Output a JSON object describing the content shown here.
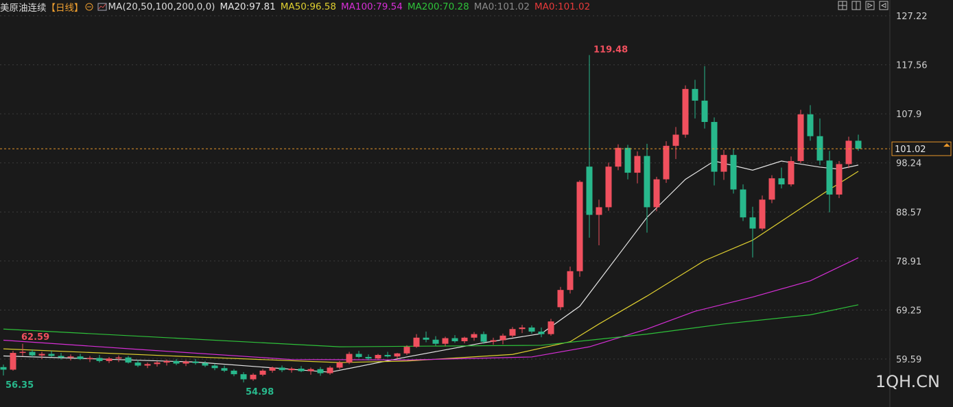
{
  "header": {
    "title": "美原油连续",
    "period": "【日线】",
    "indicator": "MA(20,50,100,200,0,0)"
  },
  "chart_data": {
    "type": "candlestick",
    "open": [
      58,
      57.5,
      60.8,
      61.0,
      60.3,
      60.6,
      60.2,
      59.9,
      60.1,
      59.6,
      59.8,
      59.2,
      59.7,
      59.9,
      58.9,
      58.3,
      58.6,
      58.9,
      59.2,
      58.7,
      59.1,
      58.8,
      58.3,
      57.8,
      57.3,
      56.6,
      55.6,
      56.5,
      57.3,
      57.9,
      57.4,
      57.7,
      57.2,
      57.6,
      56.8,
      57.9,
      58.9,
      60.6,
      60.0,
      59.7,
      60.4,
      60.1,
      60.7,
      62.0,
      63.8,
      63.4,
      62.6,
      63.7,
      63.1,
      63.8,
      64.5,
      63.0,
      63.3,
      64.2,
      65.5,
      65.8,
      65.0,
      64.5,
      69.8,
      73.2,
      76.9,
      97.5,
      88.0,
      89.5,
      97.5,
      101.2,
      96.3,
      99.6,
      89.5,
      95.0,
      101.6,
      103.8,
      112.8,
      110.5,
      106.3,
      96.5,
      99.8,
      93.0,
      87.5,
      85.3,
      91.0,
      95.2,
      94.0,
      98.6,
      107.8,
      103.5,
      98.7,
      92.0,
      98.0,
      102.6
    ],
    "high": [
      58.5,
      61.2,
      62.59,
      61.5,
      61.0,
      61.2,
      60.8,
      60.5,
      60.6,
      60.2,
      60.4,
      60.0,
      60.3,
      60.2,
      59.4,
      58.9,
      59.2,
      59.5,
      59.6,
      59.4,
      59.6,
      59.2,
      58.7,
      58.3,
      57.6,
      57.0,
      56.8,
      57.6,
      58.1,
      58.3,
      58.0,
      58.2,
      57.9,
      58.0,
      58.2,
      59.2,
      61.0,
      61.2,
      60.5,
      60.6,
      61.0,
      60.8,
      62.3,
      64.5,
      65.0,
      64.1,
      64.0,
      64.3,
      64.0,
      64.9,
      65.0,
      63.8,
      64.6,
      65.9,
      66.3,
      66.2,
      65.8,
      67.5,
      73.8,
      77.8,
      94.8,
      119.48,
      91.0,
      98.3,
      101.9,
      101.8,
      100.5,
      102.0,
      95.5,
      102.5,
      105.3,
      113.5,
      114.6,
      117.3,
      107.2,
      100.8,
      101.0,
      94.0,
      89.6,
      91.8,
      95.8,
      97.3,
      99.5,
      108.7,
      109.6,
      107.0,
      100.6,
      98.6,
      103.4,
      103.8
    ],
    "low": [
      56.35,
      57.3,
      60.2,
      60.0,
      59.6,
      60.0,
      59.5,
      59.3,
      59.4,
      59.0,
      58.9,
      58.8,
      59.0,
      58.7,
      58.0,
      57.8,
      58.1,
      58.3,
      58.4,
      58.2,
      58.5,
      58.0,
      57.4,
      57.0,
      56.2,
      54.98,
      55.3,
      56.2,
      56.9,
      57.0,
      56.9,
      57.0,
      56.5,
      56.3,
      56.5,
      57.6,
      58.6,
      59.8,
      59.3,
      59.5,
      59.9,
      59.6,
      60.4,
      61.8,
      62.9,
      62.2,
      62.1,
      62.8,
      62.7,
      63.2,
      62.6,
      62.4,
      62.5,
      63.9,
      64.7,
      64.6,
      63.9,
      64.2,
      69.3,
      72.5,
      75.8,
      83.5,
      82.0,
      88.8,
      96.8,
      95.0,
      94.2,
      84.5,
      88.7,
      94.3,
      99.0,
      103.2,
      107.0,
      105.0,
      93.8,
      94.9,
      92.2,
      86.8,
      79.6,
      84.9,
      90.3,
      93.2,
      93.6,
      98.2,
      102.6,
      97.8,
      88.5,
      91.3,
      97.2,
      100.6
    ],
    "close": [
      57.5,
      60.8,
      61.0,
      60.3,
      60.6,
      60.2,
      59.9,
      60.1,
      59.6,
      59.8,
      59.2,
      59.7,
      59.9,
      58.9,
      58.3,
      58.6,
      58.9,
      59.2,
      58.7,
      59.1,
      58.8,
      58.3,
      57.8,
      57.3,
      56.6,
      55.6,
      56.5,
      57.3,
      57.9,
      57.4,
      57.7,
      57.2,
      57.6,
      56.8,
      57.9,
      58.9,
      60.6,
      60.0,
      59.7,
      60.4,
      60.1,
      60.7,
      62.0,
      63.8,
      63.4,
      62.6,
      63.7,
      63.1,
      63.8,
      64.5,
      63.0,
      63.3,
      64.2,
      65.5,
      65.8,
      65.0,
      64.5,
      67.0,
      73.2,
      76.9,
      94.5,
      88.0,
      89.5,
      97.5,
      101.2,
      96.3,
      99.6,
      89.5,
      95.0,
      101.6,
      103.8,
      112.8,
      110.5,
      106.3,
      96.5,
      99.8,
      93.0,
      87.5,
      85.3,
      91.0,
      95.2,
      94.0,
      98.6,
      107.8,
      103.5,
      98.7,
      92.0,
      98.0,
      102.6,
      101.02
    ],
    "up_color": "#f0505e",
    "down_color": "#28b88c",
    "series": [
      {
        "name": "MA20:97.81",
        "color": "#e6e6e6",
        "x": [
          0,
          10,
          20,
          34,
          42,
          50,
          56,
          60,
          64,
          67,
          71,
          74,
          78,
          81,
          85,
          87,
          89
        ],
        "values": [
          60.2,
          59.6,
          59.0,
          57.0,
          60.0,
          62.8,
          64.6,
          70,
          80,
          87.5,
          95,
          98.6,
          96.8,
          98.6,
          97.4,
          97.0,
          97.81
        ]
      },
      {
        "name": "MA50:96.58",
        "color": "#e0d030",
        "x": [
          0,
          20,
          35,
          42,
          53,
          59,
          62,
          67,
          73,
          78,
          82,
          86,
          89
        ],
        "values": [
          61.6,
          60.0,
          58.9,
          59.2,
          60.5,
          63,
          66.5,
          72,
          79,
          83,
          88,
          93,
          96.58
        ]
      },
      {
        "name": "MA100:79.54",
        "color": "#d72fd7",
        "x": [
          0,
          14,
          30,
          42,
          55,
          61,
          67,
          72,
          78,
          84,
          89
        ],
        "values": [
          63.3,
          61.5,
          59.5,
          59.4,
          60,
          62,
          65.5,
          69,
          71.8,
          75,
          79.54
        ]
      },
      {
        "name": "MA200:70.28",
        "color": "#2ec23a",
        "x": [
          0,
          35,
          56,
          67,
          75,
          84,
          89
        ],
        "values": [
          65.5,
          62,
          62.3,
          64.5,
          66.5,
          68.3,
          70.28
        ]
      }
    ],
    "extra_legend": [
      {
        "name": "MA0:101.02",
        "color": "#8a8a8a"
      },
      {
        "name": "MA0:101.02",
        "color": "#e83a3a"
      }
    ],
    "last_price": 101.02,
    "last_price_color": "#e8962a",
    "ylim": [
      50.14,
      130.33
    ],
    "yticks": [
      59.59,
      69.25,
      78.91,
      88.57,
      98.24,
      107.9,
      117.56,
      127.22
    ],
    "grid": true,
    "watermark": "1QH.CN"
  }
}
